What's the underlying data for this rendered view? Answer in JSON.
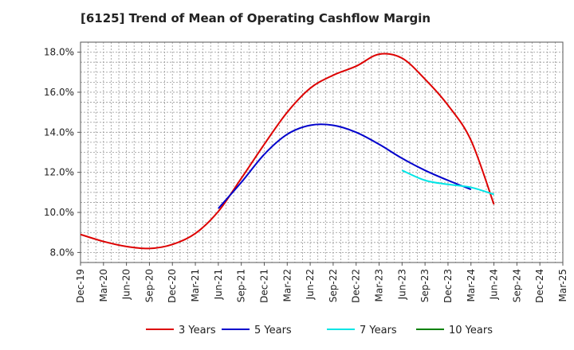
{
  "chart_data": {
    "type": "line",
    "title": "[6125]  Trend of Mean of Operating Cashflow Margin",
    "xlabel": "",
    "ylabel": "",
    "ylim": [
      7.5,
      18.5
    ],
    "yticks": [
      8,
      10,
      12,
      14,
      16,
      18
    ],
    "ytick_labels": [
      "8.0%",
      "10.0%",
      "12.0%",
      "14.0%",
      "16.0%",
      "18.0%"
    ],
    "x_tick_labels": [
      "Dec-19",
      "Mar-20",
      "Jun-20",
      "Sep-20",
      "Dec-20",
      "Mar-21",
      "Jun-21",
      "Sep-21",
      "Dec-21",
      "Mar-22",
      "Jun-22",
      "Sep-22",
      "Dec-22",
      "Mar-23",
      "Jun-23",
      "Sep-23",
      "Dec-23",
      "Mar-24",
      "Jun-24",
      "Sep-24",
      "Dec-24",
      "Mar-25"
    ],
    "x_quarter_count": 22,
    "grid": true,
    "legend_position": "bottom",
    "series": [
      {
        "name": "3 Years",
        "color": "#dd0000",
        "start_index": 0,
        "values": [
          8.9,
          8.55,
          8.3,
          8.2,
          8.4,
          8.95,
          10.05,
          11.7,
          13.4,
          15.0,
          16.2,
          16.85,
          17.3,
          17.9,
          17.7,
          16.65,
          15.35,
          13.6,
          10.4
        ]
      },
      {
        "name": "5 Years",
        "color": "#0000cc",
        "start_index": 6,
        "values": [
          10.2,
          11.5,
          12.9,
          13.9,
          14.35,
          14.35,
          14.0,
          13.4,
          12.7,
          12.1,
          11.6,
          11.15
        ]
      },
      {
        "name": "7 Years",
        "color": "#00e5e5",
        "start_index": 14,
        "values": [
          12.1,
          11.6,
          11.4,
          11.25,
          10.9
        ]
      },
      {
        "name": "10 Years",
        "color": "#008000",
        "start_index": 0,
        "values": []
      }
    ]
  }
}
